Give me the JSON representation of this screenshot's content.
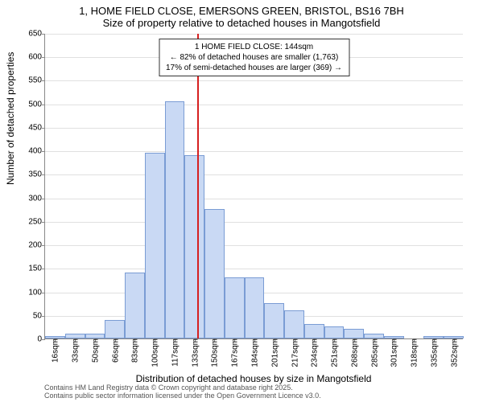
{
  "title_line1": "1, HOME FIELD CLOSE, EMERSONS GREEN, BRISTOL, BS16 7BH",
  "title_line2": "Size of property relative to detached houses in Mangotsfield",
  "ylabel": "Number of detached properties",
  "xlabel": "Distribution of detached houses by size in Mangotsfield",
  "footer_line1": "Contains HM Land Registry data © Crown copyright and database right 2025.",
  "footer_line2": "Contains public sector information licensed under the Open Government Licence v3.0.",
  "info_box_line1": "1 HOME FIELD CLOSE: 144sqm",
  "info_box_line2": "← 82% of detached houses are smaller (1,763)",
  "info_box_line3": "17% of semi-detached houses are larger (369) →",
  "chart": {
    "type": "histogram",
    "ylim": [
      0,
      650
    ],
    "yticks": [
      0,
      50,
      100,
      150,
      200,
      250,
      300,
      350,
      400,
      450,
      500,
      550,
      600,
      650
    ],
    "x_categories": [
      "16sqm",
      "33sqm",
      "50sqm",
      "66sqm",
      "83sqm",
      "100sqm",
      "117sqm",
      "133sqm",
      "150sqm",
      "167sqm",
      "184sqm",
      "201sqm",
      "217sqm",
      "234sqm",
      "251sqm",
      "268sqm",
      "285sqm",
      "301sqm",
      "318sqm",
      "335sqm",
      "352sqm"
    ],
    "bar_values": [
      5,
      10,
      10,
      40,
      140,
      395,
      505,
      390,
      275,
      130,
      130,
      75,
      60,
      30,
      25,
      20,
      10,
      5,
      0,
      5,
      5
    ],
    "bar_fill": "#c9d9f4",
    "bar_stroke": "#7a9cd4",
    "grid_color": "#e0e0e0",
    "axis_color": "#888888",
    "refline_color": "#d62020",
    "refline_x_value": 144,
    "background_color": "#ffffff",
    "label_fontsize": 12,
    "tick_fontsize": 10,
    "title_fontsize": 13,
    "bar_width_ratio": 1.0
  }
}
